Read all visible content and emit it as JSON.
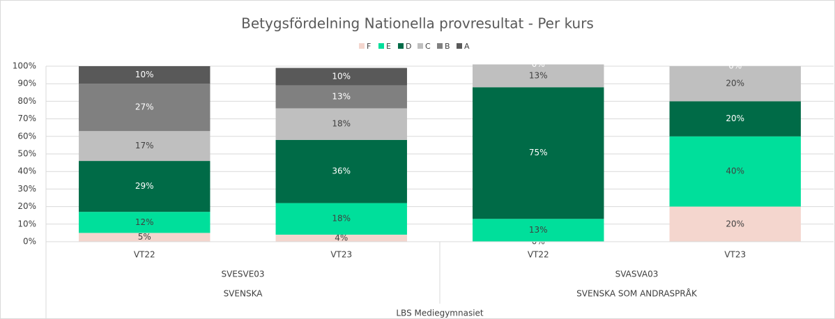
{
  "chart_data": {
    "type": "stacked_bar",
    "title": "Betygsfördelning Nationella provresultat - Per kurs",
    "categories": [
      "VT22",
      "VT23",
      "VT22",
      "VT23"
    ],
    "groups": [
      "SVESVE03",
      "SVASVA03"
    ],
    "subjects": [
      "SVENSKA",
      "SVENSKA SOM ANDRASPRÅK"
    ],
    "school": "LBS Mediegymnasiet",
    "ylim": [
      0,
      100
    ],
    "yticks": [
      {
        "value": 0,
        "label": "0%"
      },
      {
        "value": 10,
        "label": "10%"
      },
      {
        "value": 20,
        "label": "20%"
      },
      {
        "value": 30,
        "label": "30%"
      },
      {
        "value": 40,
        "label": "40%"
      },
      {
        "value": 50,
        "label": "50%"
      },
      {
        "value": 60,
        "label": "60%"
      },
      {
        "value": 70,
        "label": "70%"
      },
      {
        "value": 80,
        "label": "80%"
      },
      {
        "value": 90,
        "label": "90%"
      },
      {
        "value": 100,
        "label": "100%"
      }
    ],
    "grid": true,
    "legend": "top",
    "series": [
      {
        "name": "F",
        "color": "#f4d6ce",
        "label_color": "#404040",
        "values": [
          5,
          4,
          0,
          20
        ],
        "value_labels": [
          "5%",
          "4%",
          "0%",
          "20%"
        ]
      },
      {
        "name": "E",
        "color": "#00df9b",
        "label_color": "#404040",
        "values": [
          12,
          18,
          13,
          40
        ],
        "value_labels": [
          "12%",
          "18%",
          "13%",
          "40%"
        ]
      },
      {
        "name": "D",
        "color": "#006b47",
        "label_color": "#ffffff",
        "values": [
          29,
          36,
          75,
          20
        ],
        "value_labels": [
          "29%",
          "36%",
          "75%",
          "20%"
        ]
      },
      {
        "name": "C",
        "color": "#bfbfbf",
        "label_color": "#404040",
        "values": [
          17,
          18,
          13,
          20
        ],
        "value_labels": [
          "17%",
          "18%",
          "13%",
          "20%"
        ]
      },
      {
        "name": "B",
        "color": "#808080",
        "label_color": "#ffffff",
        "values": [
          27,
          13,
          0,
          0
        ],
        "value_labels": [
          "27%",
          "13%",
          "0%",
          "0%"
        ]
      },
      {
        "name": "A",
        "color": "#595959",
        "label_color": "#ffffff",
        "values": [
          10,
          10,
          null,
          null
        ],
        "value_labels": [
          "10%",
          "10%",
          null,
          null
        ]
      }
    ]
  }
}
